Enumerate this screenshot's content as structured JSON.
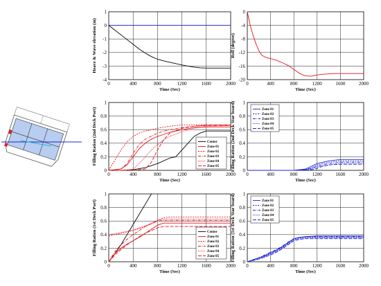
{
  "ship_diagram": {
    "label": "ship-cross-section"
  },
  "colors": {
    "black": "#000000",
    "red": "#e8111b",
    "blue": "#1d22d6",
    "gridline": "#000000"
  },
  "chart_data": [
    {
      "id": "heave",
      "type": "line",
      "title": "",
      "xlabel": "Time (Sec)",
      "ylabel": "Heave & Wave elevation (m)",
      "xlim": [
        0,
        2000
      ],
      "ylim": [
        -4,
        1
      ],
      "xticks": [
        0,
        400,
        800,
        1200,
        1600,
        2000
      ],
      "yticks": [
        1,
        0,
        -1,
        -2,
        -3,
        -4
      ],
      "grid": true,
      "legend": [],
      "series": [
        {
          "color": "#1d22d6",
          "dash": "solid",
          "x": [
            0,
            2000
          ],
          "y": [
            0,
            0
          ]
        },
        {
          "color": "#000000",
          "dash": "solid",
          "x": [
            0,
            100,
            200,
            300,
            400,
            500,
            600,
            700,
            800,
            900,
            1000,
            1100,
            1200,
            1300,
            1400,
            1500,
            1600,
            1700,
            1800,
            1900,
            2000
          ],
          "y": [
            0,
            -0.35,
            -0.7,
            -1.05,
            -1.4,
            -1.75,
            -2.05,
            -2.3,
            -2.5,
            -2.62,
            -2.72,
            -2.82,
            -2.92,
            -3.0,
            -3.08,
            -3.13,
            -3.15,
            -3.15,
            -3.15,
            -3.15,
            -3.15
          ]
        }
      ]
    },
    {
      "id": "roll",
      "type": "line",
      "title": "",
      "xlabel": "Time (Sec)",
      "ylabel": "Roll (degree)",
      "xlim": [
        0,
        2000
      ],
      "ylim": [
        -20,
        0
      ],
      "xticks": [
        0,
        400,
        800,
        1200,
        1600,
        2000
      ],
      "yticks": [
        0,
        -4,
        -8,
        -12,
        -16,
        -20
      ],
      "grid": true,
      "legend": [],
      "series": [
        {
          "color": "#e8111b",
          "dash": "solid",
          "x": [
            0,
            50,
            100,
            150,
            200,
            250,
            300,
            350,
            400,
            500,
            600,
            700,
            800,
            900,
            1000,
            1100,
            1200,
            1300,
            1400,
            1500,
            1600,
            1800,
            2000
          ],
          "y": [
            0,
            -4,
            -7,
            -9.5,
            -11.5,
            -12.8,
            -13.3,
            -13.6,
            -13.8,
            -14.3,
            -15.0,
            -15.8,
            -17.0,
            -18.2,
            -18.9,
            -19.0,
            -18.6,
            -18.4,
            -18.3,
            -18.2,
            -18.2,
            -18.2,
            -18.2
          ]
        }
      ]
    },
    {
      "id": "deck2-port",
      "type": "line",
      "title": "",
      "xlabel": "Time (Sec)",
      "ylabel": "Filling Ration (2nd Deck Port)",
      "xlim": [
        0,
        2000
      ],
      "ylim": [
        0,
        1
      ],
      "xticks": [
        0,
        400,
        800,
        1200,
        1600,
        2000
      ],
      "yticks": [
        1,
        0.8,
        0.6,
        0.4,
        0.2,
        0
      ],
      "grid": true,
      "legend": [
        "Center",
        "Zone 01",
        "Zone 02",
        "Zone 03",
        "Zone 04",
        "Zone 05"
      ],
      "legend_position": "bottom-right",
      "series": [
        {
          "name": "Center",
          "color": "#000000",
          "dash": "solid",
          "x": [
            0,
            200,
            400,
            600,
            800,
            1000,
            1100,
            1200,
            1300,
            1400,
            1500,
            1600,
            1700,
            1800,
            2000
          ],
          "y": [
            0,
            0,
            0.01,
            0.04,
            0.1,
            0.18,
            0.2,
            0.3,
            0.4,
            0.5,
            0.55,
            0.58,
            0.58,
            0.58,
            0.58
          ]
        },
        {
          "name": "Zone 01",
          "color": "#e8111b",
          "dash": "solid",
          "x": [
            0,
            200,
            300,
            400,
            500,
            600,
            700,
            800,
            1000,
            1200,
            1400,
            1600,
            2000
          ],
          "y": [
            0,
            0.02,
            0.08,
            0.2,
            0.32,
            0.4,
            0.46,
            0.5,
            0.56,
            0.6,
            0.63,
            0.64,
            0.64
          ]
        },
        {
          "name": "Zone 02",
          "color": "#e8111b",
          "dash": "2,1.5",
          "x": [
            0,
            100,
            200,
            300,
            400,
            500,
            600,
            800,
            1000,
            1200,
            1600,
            2000
          ],
          "y": [
            0,
            0.15,
            0.3,
            0.42,
            0.5,
            0.55,
            0.58,
            0.62,
            0.65,
            0.67,
            0.67,
            0.67
          ]
        },
        {
          "name": "Zone 03",
          "color": "#e8111b",
          "dash": "4,1.5,1,1.5",
          "x": [
            0,
            200,
            300,
            400,
            500,
            600,
            800,
            1000,
            1200,
            1400,
            1600,
            2000
          ],
          "y": [
            0,
            0.02,
            0.1,
            0.25,
            0.38,
            0.46,
            0.55,
            0.6,
            0.63,
            0.65,
            0.66,
            0.66
          ]
        },
        {
          "name": "Zone 04",
          "color": "#e8111b",
          "dash": "1,1.2",
          "x": [
            0,
            300,
            400,
            500,
            600,
            700,
            800,
            900,
            1000,
            1200,
            1400,
            1600,
            2000
          ],
          "y": [
            0,
            0,
            0.02,
            0.1,
            0.2,
            0.3,
            0.38,
            0.45,
            0.5,
            0.57,
            0.62,
            0.65,
            0.66
          ]
        },
        {
          "name": "Zone 05",
          "color": "#e8111b",
          "dash": "5,2",
          "x": [
            0,
            400,
            600,
            700,
            800,
            900,
            1000,
            1200,
            1400,
            1600,
            2000
          ],
          "y": [
            0,
            0,
            0.02,
            0.12,
            0.3,
            0.45,
            0.55,
            0.62,
            0.65,
            0.67,
            0.67
          ]
        }
      ]
    },
    {
      "id": "deck2-starboard",
      "type": "line",
      "title": "",
      "xlabel": "Time (Sec)",
      "ylabel": "Filling Ration (2nd Deck Star board)",
      "xlim": [
        0,
        2000
      ],
      "ylim": [
        0,
        1
      ],
      "xticks": [
        0,
        400,
        800,
        1200,
        1600,
        2000
      ],
      "yticks": [
        1,
        0.8,
        0.6,
        0.4,
        0.2,
        0
      ],
      "grid": true,
      "legend": [
        "Zone 01",
        "Zone 02",
        "Zone 03",
        "Zone 04",
        "Zone 05"
      ],
      "legend_position": "top-left",
      "series": [
        {
          "name": "Zone 01",
          "color": "#1d22d6",
          "dash": "solid",
          "x": [
            0,
            800,
            1000,
            1100,
            1200,
            1400,
            1600,
            1800,
            2000
          ],
          "y": [
            0,
            0,
            0.02,
            0.06,
            0.1,
            0.14,
            0.16,
            0.16,
            0.16
          ]
        },
        {
          "name": "Zone 02",
          "color": "#1d22d6",
          "dash": "2,1.5",
          "x": [
            0,
            800,
            1000,
            1100,
            1200,
            1400,
            1600,
            1800,
            2000
          ],
          "y": [
            0,
            0,
            0.01,
            0.04,
            0.08,
            0.12,
            0.14,
            0.14,
            0.14
          ]
        },
        {
          "name": "Zone 03",
          "color": "#1d22d6",
          "dash": "4,1.5,1,1.5",
          "x": [
            0,
            850,
            1000,
            1100,
            1200,
            1400,
            1600,
            1800,
            2000
          ],
          "y": [
            0,
            0,
            0.01,
            0.03,
            0.06,
            0.1,
            0.12,
            0.12,
            0.12
          ]
        },
        {
          "name": "Zone 04",
          "color": "#1d22d6",
          "dash": "1,1.2",
          "x": [
            0,
            900,
            1000,
            1100,
            1200,
            1400,
            1600,
            1800,
            2000
          ],
          "y": [
            0,
            0,
            0.01,
            0.02,
            0.05,
            0.08,
            0.1,
            0.1,
            0.1
          ]
        },
        {
          "name": "Zone 05",
          "color": "#1d22d6",
          "dash": "5,2",
          "x": [
            0,
            950,
            1100,
            1200,
            1300,
            1400,
            1600,
            1800,
            2000
          ],
          "y": [
            0,
            0,
            0.01,
            0.03,
            0.06,
            0.08,
            0.09,
            0.09,
            0.09
          ]
        }
      ]
    },
    {
      "id": "deck1-port",
      "type": "line",
      "title": "",
      "xlabel": "Time (Sec)",
      "ylabel": "Filling Ration (1st Deck Port)",
      "xlim": [
        0,
        2000
      ],
      "ylim": [
        0,
        1
      ],
      "xticks": [
        0,
        400,
        800,
        1200,
        1600,
        2000
      ],
      "yticks": [
        1,
        0.8,
        0.6,
        0.4,
        0.2,
        0
      ],
      "grid": true,
      "legend": [
        "Center",
        "Zone 01",
        "Zone 02",
        "Zone 03",
        "Zone 04",
        "Zone 05"
      ],
      "legend_position": "bottom-right",
      "series": [
        {
          "name": "Center",
          "color": "#000000",
          "dash": "solid",
          "x": [
            0,
            100,
            200,
            300,
            400,
            500,
            600,
            700
          ],
          "y": [
            0,
            0.12,
            0.25,
            0.4,
            0.55,
            0.7,
            0.85,
            1.0
          ]
        },
        {
          "name": "Zone 01",
          "color": "#e8111b",
          "dash": "solid",
          "x": [
            0,
            100,
            200,
            300,
            400,
            500,
            600,
            700,
            800,
            900,
            1000,
            1200,
            1600,
            2000
          ],
          "y": [
            0,
            0.12,
            0.2,
            0.26,
            0.31,
            0.36,
            0.42,
            0.48,
            0.54,
            0.57,
            0.57,
            0.57,
            0.57,
            0.57
          ]
        },
        {
          "name": "Zone 02",
          "color": "#e8111b",
          "dash": "2,1.5",
          "x": [
            0,
            200,
            400,
            600,
            700,
            800,
            900,
            1000,
            1200,
            1600,
            2000
          ],
          "y": [
            0.38,
            0.42,
            0.46,
            0.52,
            0.56,
            0.61,
            0.65,
            0.66,
            0.66,
            0.66,
            0.66
          ]
        },
        {
          "name": "Zone 03",
          "color": "#e8111b",
          "dash": "4,1.5,1,1.5",
          "x": [
            0,
            100,
            200,
            300,
            400,
            500,
            600,
            700,
            800,
            900,
            1000,
            1200,
            1600,
            2000
          ],
          "y": [
            0,
            0.15,
            0.25,
            0.33,
            0.4,
            0.46,
            0.52,
            0.56,
            0.6,
            0.61,
            0.61,
            0.61,
            0.61,
            0.61
          ]
        },
        {
          "name": "Zone 04",
          "color": "#e8111b",
          "dash": "1,1.2",
          "x": [
            0,
            200,
            400,
            600,
            700,
            800,
            900,
            1000,
            1200,
            1600,
            2000
          ],
          "y": [
            0.4,
            0.43,
            0.47,
            0.53,
            0.57,
            0.61,
            0.63,
            0.63,
            0.63,
            0.63,
            0.63
          ]
        },
        {
          "name": "Zone 05",
          "color": "#e8111b",
          "dash": "5,2",
          "x": [
            0,
            100,
            200,
            300,
            400,
            500,
            600,
            700,
            800,
            900,
            1000,
            1200,
            1600,
            2000
          ],
          "y": [
            0,
            0.1,
            0.18,
            0.25,
            0.31,
            0.37,
            0.42,
            0.46,
            0.5,
            0.52,
            0.52,
            0.52,
            0.52,
            0.52
          ]
        }
      ]
    },
    {
      "id": "deck1-starboard",
      "type": "line",
      "title": "",
      "xlabel": "Time (Sec)",
      "ylabel": "Filling Ration (1st Deck Star board)",
      "xlim": [
        0,
        2000
      ],
      "ylim": [
        0,
        1
      ],
      "xticks": [
        0,
        400,
        800,
        1200,
        1600,
        2000
      ],
      "yticks": [
        1,
        0.8,
        0.6,
        0.4,
        0.2,
        0
      ],
      "grid": true,
      "legend": [
        "Zone 01",
        "Zone 02",
        "Zone 03",
        "Zone 04",
        "Zone 05"
      ],
      "legend_position": "top-left",
      "series": [
        {
          "name": "Zone 01",
          "color": "#1d22d6",
          "dash": "solid",
          "x": [
            0,
            100,
            200,
            300,
            400,
            500,
            600,
            700,
            800,
            900,
            1000,
            1200,
            1600,
            2000
          ],
          "y": [
            0,
            0.03,
            0.06,
            0.09,
            0.13,
            0.17,
            0.22,
            0.28,
            0.34,
            0.36,
            0.37,
            0.38,
            0.38,
            0.38
          ]
        },
        {
          "name": "Zone 02",
          "color": "#1d22d6",
          "dash": "2,1.5",
          "x": [
            0,
            100,
            200,
            300,
            400,
            500,
            600,
            700,
            800,
            900,
            1000,
            1200,
            1600,
            2000
          ],
          "y": [
            0,
            0.02,
            0.05,
            0.08,
            0.12,
            0.16,
            0.21,
            0.27,
            0.33,
            0.35,
            0.36,
            0.36,
            0.36,
            0.36
          ]
        },
        {
          "name": "Zone 03",
          "color": "#1d22d6",
          "dash": "4,1.5,1,1.5",
          "x": [
            0,
            100,
            200,
            300,
            400,
            500,
            600,
            700,
            800,
            900,
            1000,
            1200,
            1600,
            2000
          ],
          "y": [
            0,
            0.03,
            0.06,
            0.1,
            0.14,
            0.18,
            0.23,
            0.29,
            0.34,
            0.36,
            0.37,
            0.37,
            0.37,
            0.37
          ]
        },
        {
          "name": "Zone 04",
          "color": "#1d22d6",
          "dash": "1,1.2",
          "x": [
            0,
            100,
            200,
            300,
            400,
            500,
            600,
            700,
            800,
            900,
            1000,
            1200,
            1600,
            2000
          ],
          "y": [
            0,
            0.02,
            0.04,
            0.07,
            0.11,
            0.15,
            0.2,
            0.26,
            0.32,
            0.34,
            0.35,
            0.35,
            0.35,
            0.35
          ]
        },
        {
          "name": "Zone 05",
          "color": "#1d22d6",
          "dash": "5,2",
          "x": [
            0,
            100,
            200,
            300,
            400,
            500,
            600,
            700,
            800,
            900,
            1000,
            1200,
            1600,
            2000
          ],
          "y": [
            0,
            0.02,
            0.04,
            0.07,
            0.1,
            0.14,
            0.19,
            0.25,
            0.31,
            0.33,
            0.34,
            0.34,
            0.34,
            0.34
          ]
        }
      ]
    }
  ]
}
